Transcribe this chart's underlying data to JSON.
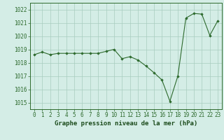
{
  "x": [
    0,
    1,
    2,
    3,
    4,
    5,
    6,
    7,
    8,
    9,
    10,
    11,
    12,
    13,
    14,
    15,
    16,
    17,
    18,
    19,
    20,
    21,
    22,
    23
  ],
  "y": [
    1018.6,
    1018.8,
    1018.6,
    1018.7,
    1018.7,
    1018.7,
    1018.7,
    1018.7,
    1018.7,
    1018.85,
    1019.0,
    1018.3,
    1018.45,
    1018.2,
    1017.75,
    1017.25,
    1016.7,
    1015.1,
    1017.0,
    1021.35,
    1021.7,
    1021.65,
    1020.05,
    1021.15
  ],
  "line_color": "#2d6a2d",
  "marker_color": "#2d6a2d",
  "bg_color": "#d4ede6",
  "grid_color": "#a8ccbf",
  "xlabel": "Graphe pression niveau de la mer (hPa)",
  "ylim": [
    1014.5,
    1022.5
  ],
  "yticks": [
    1015,
    1016,
    1017,
    1018,
    1019,
    1020,
    1021,
    1022
  ],
  "xlim": [
    -0.5,
    23.5
  ],
  "xticks": [
    0,
    1,
    2,
    3,
    4,
    5,
    6,
    7,
    8,
    9,
    10,
    11,
    12,
    13,
    14,
    15,
    16,
    17,
    18,
    19,
    20,
    21,
    22,
    23
  ],
  "xlabel_color": "#1a4a1a",
  "xlabel_fontsize": 6.5,
  "tick_fontsize": 5.5,
  "tick_color": "#2d6a2d",
  "border_color": "#2d6a2d"
}
